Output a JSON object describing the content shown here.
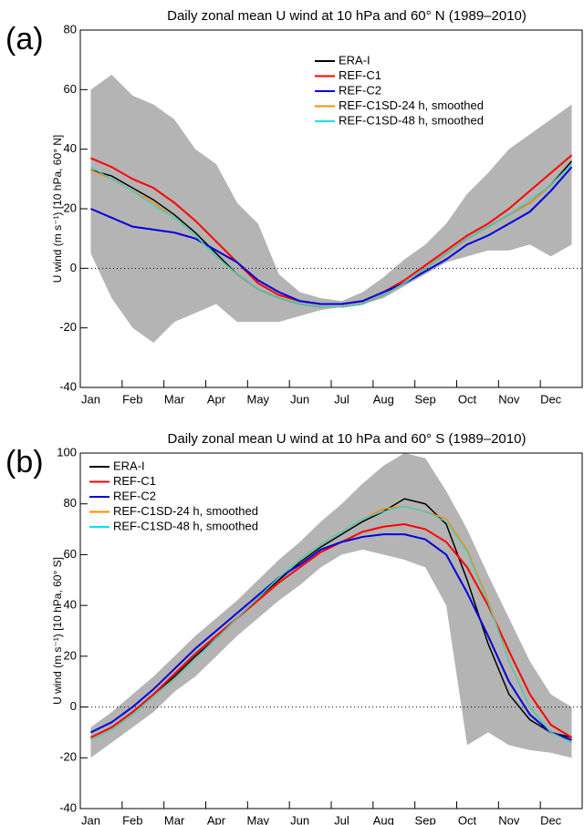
{
  "chart_data": [
    {
      "type": "line",
      "panel_label": "(a)",
      "title": "Daily zonal mean U wind at 10 hPa and 60° N (1989–2010)",
      "ylabel": "U wind (m s⁻¹) [10 hPa, 60° N]",
      "categories": [
        "Jan",
        null,
        "Feb",
        null,
        "Mar",
        null,
        "Apr",
        null,
        "May",
        null,
        "Jun",
        null,
        "Jul",
        null,
        "Aug",
        null,
        "Sep",
        null,
        "Oct",
        null,
        "Nov",
        null,
        "Dec",
        null
      ],
      "ylim": [
        -40,
        80
      ],
      "yticks": [
        -40,
        -20,
        0,
        20,
        40,
        60,
        80
      ],
      "legend": "upper right",
      "band": {
        "color": "#b4b4b4",
        "lower": [
          5,
          -10,
          -20,
          -25,
          -18,
          -15,
          -12,
          -18,
          -18,
          -18,
          -16,
          -14,
          -13,
          -12,
          -10,
          -6,
          -2,
          2,
          4,
          6,
          6,
          8,
          4,
          8
        ],
        "upper": [
          60,
          65,
          58,
          55,
          50,
          40,
          35,
          22,
          15,
          -2,
          -8,
          -10,
          -11,
          -8,
          -3,
          3,
          8,
          15,
          25,
          32,
          40,
          45,
          50,
          55
        ]
      },
      "series": [
        {
          "name": "ERA-I",
          "color": "#000000",
          "values": [
            33,
            31,
            27,
            23,
            18,
            12,
            5,
            -2,
            -7,
            -10,
            -12,
            -13,
            -13,
            -12,
            -9,
            -5,
            0,
            5,
            10,
            14,
            18,
            22,
            28,
            36
          ]
        },
        {
          "name": "REF-C1",
          "color": "#ff0000",
          "values": [
            37,
            34,
            30,
            27,
            22,
            16,
            9,
            2,
            -5,
            -9,
            -11,
            -12,
            -12,
            -11,
            -8,
            -4,
            1,
            6,
            11,
            15,
            20,
            26,
            32,
            38
          ]
        },
        {
          "name": "REF-C2",
          "color": "#0000dd",
          "values": [
            20,
            17,
            14,
            13,
            12,
            10,
            6,
            2,
            -4,
            -8,
            -11,
            -12,
            -12,
            -11,
            -8,
            -5,
            -1,
            3,
            8,
            11,
            15,
            19,
            26,
            34
          ]
        },
        {
          "name": "REF-C1SD-24 h, smoothed",
          "color": "#ff8c00",
          "values": [
            33,
            30,
            26,
            22,
            17,
            11,
            4,
            -2,
            -7,
            -10,
            -12,
            -13,
            -13,
            -12,
            -9,
            -5,
            0,
            5,
            10,
            14,
            18,
            22,
            28,
            35
          ]
        },
        {
          "name": "REF-C1SD-48 h, smoothed",
          "color": "#00e5ee",
          "values": [
            34,
            30,
            26,
            21,
            17,
            11,
            4,
            -2,
            -7,
            -10,
            -12,
            -13,
            -13,
            -12,
            -9,
            -5,
            0,
            5,
            10,
            14,
            18,
            23,
            28,
            35
          ]
        }
      ]
    },
    {
      "type": "line",
      "panel_label": "(b)",
      "title": "Daily zonal mean U wind at 10 hPa and 60° S (1989–2010)",
      "ylabel": "U wind (m s⁻¹) [10 hPa, 60° S]",
      "categories": [
        "Jan",
        null,
        "Feb",
        null,
        "Mar",
        null,
        "Apr",
        null,
        "May",
        null,
        "Jun",
        null,
        "Jul",
        null,
        "Aug",
        null,
        "Sep",
        null,
        "Oct",
        null,
        "Nov",
        null,
        "Dec",
        null
      ],
      "ylim": [
        -40,
        100
      ],
      "yticks": [
        -40,
        -20,
        0,
        20,
        40,
        60,
        80,
        100
      ],
      "legend": "upper left",
      "band": {
        "color": "#b4b4b4",
        "lower": [
          -20,
          -14,
          -8,
          -2,
          6,
          12,
          20,
          28,
          35,
          42,
          48,
          55,
          60,
          62,
          60,
          58,
          55,
          40,
          -15,
          -10,
          -15,
          -17,
          -18,
          -20
        ],
        "upper": [
          -8,
          -2,
          5,
          12,
          20,
          28,
          35,
          42,
          50,
          58,
          65,
          73,
          80,
          88,
          95,
          100,
          98,
          85,
          70,
          52,
          35,
          18,
          5,
          0
        ]
      },
      "series": [
        {
          "name": "ERA-I",
          "color": "#000000",
          "values": [
            -12,
            -8,
            -2,
            5,
            12,
            20,
            27,
            35,
            43,
            50,
            57,
            63,
            68,
            73,
            77,
            82,
            80,
            72,
            50,
            25,
            5,
            -5,
            -10,
            -12
          ]
        },
        {
          "name": "REF-C1",
          "color": "#ff0000",
          "values": [
            -12,
            -8,
            -2,
            5,
            13,
            21,
            28,
            35,
            42,
            49,
            55,
            61,
            65,
            69,
            71,
            72,
            70,
            65,
            55,
            40,
            22,
            5,
            -7,
            -12
          ]
        },
        {
          "name": "REF-C2",
          "color": "#0000dd",
          "values": [
            -10,
            -6,
            0,
            7,
            15,
            23,
            30,
            37,
            44,
            51,
            56,
            62,
            65,
            67,
            68,
            68,
            66,
            60,
            45,
            28,
            10,
            -3,
            -10,
            -13
          ]
        },
        {
          "name": "REF-C1SD-24 h, smoothed",
          "color": "#ff8c00",
          "values": [
            -13,
            -9,
            -3,
            4,
            11,
            19,
            27,
            35,
            43,
            51,
            58,
            64,
            69,
            74,
            78,
            79,
            77,
            74,
            62,
            42,
            18,
            0,
            -10,
            -14
          ]
        },
        {
          "name": "REF-C1SD-48 h, smoothed",
          "color": "#00e5ee",
          "values": [
            -13,
            -9,
            -3,
            4,
            11,
            19,
            27,
            35,
            43,
            51,
            58,
            64,
            69,
            74,
            77,
            79,
            77,
            73,
            61,
            41,
            18,
            0,
            -10,
            -14
          ]
        }
      ]
    }
  ]
}
